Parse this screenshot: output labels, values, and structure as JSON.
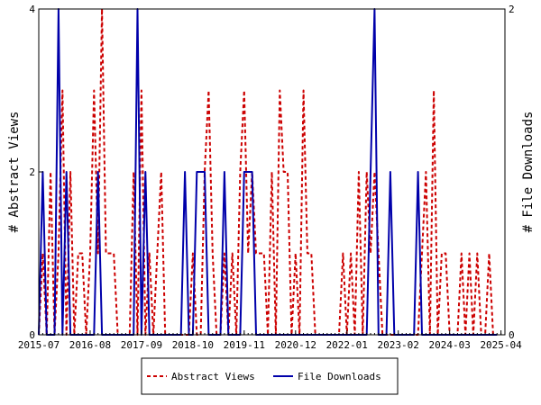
{
  "chart_data": {
    "type": "line",
    "x_start": "2015-07",
    "x_end": "2025-05",
    "x_tick_labels": [
      "2015-07",
      "2016-08",
      "2017-09",
      "2018-10",
      "2019-11",
      "2020-12",
      "2022-01",
      "2023-02",
      "2024-03",
      "2025-04"
    ],
    "ylabel_left": "# Abstract Views",
    "ylabel_right": "# File Downloads",
    "ylim_left": [
      0,
      4
    ],
    "ylim_right": [
      0,
      2
    ],
    "y_left_ticks": [
      "0",
      "2",
      "4"
    ],
    "y_right_ticks": [
      "0",
      "2"
    ],
    "grid": false,
    "legend_position": "bottom-center",
    "colors": {
      "abstract_views": "#cc0000",
      "file_downloads": "#0000aa"
    },
    "series": [
      {
        "name": "Abstract Views",
        "axis": "left",
        "style": "dashed",
        "points": [
          [
            "2015-07",
            0
          ],
          [
            "2015-08",
            1
          ],
          [
            "2015-09",
            0
          ],
          [
            "2015-10",
            2
          ],
          [
            "2015-11",
            0
          ],
          [
            "2015-12",
            1
          ],
          [
            "2016-01",
            3
          ],
          [
            "2016-02",
            0
          ],
          [
            "2016-03",
            2
          ],
          [
            "2016-04",
            0
          ],
          [
            "2016-05",
            1
          ],
          [
            "2016-06",
            1
          ],
          [
            "2016-07",
            0
          ],
          [
            "2016-08",
            1
          ],
          [
            "2016-09",
            3
          ],
          [
            "2016-10",
            1
          ],
          [
            "2016-11",
            4
          ],
          [
            "2016-12",
            1
          ],
          [
            "2017-01",
            1
          ],
          [
            "2017-02",
            1
          ],
          [
            "2017-03",
            0
          ],
          [
            "2017-04",
            0
          ],
          [
            "2017-05",
            0
          ],
          [
            "2017-06",
            0
          ],
          [
            "2017-07",
            2
          ],
          [
            "2017-08",
            0
          ],
          [
            "2017-09",
            3
          ],
          [
            "2017-10",
            0
          ],
          [
            "2017-11",
            1
          ],
          [
            "2017-12",
            0
          ],
          [
            "2018-01",
            1
          ],
          [
            "2018-02",
            2
          ],
          [
            "2018-03",
            0
          ],
          [
            "2018-04",
            0
          ],
          [
            "2018-05",
            0
          ],
          [
            "2018-06",
            0
          ],
          [
            "2018-07",
            0
          ],
          [
            "2018-08",
            0
          ],
          [
            "2018-09",
            0
          ],
          [
            "2018-10",
            1
          ],
          [
            "2018-11",
            0
          ],
          [
            "2018-12",
            0
          ],
          [
            "2019-01",
            2
          ],
          [
            "2019-02",
            3
          ],
          [
            "2019-03",
            1
          ],
          [
            "2019-04",
            0
          ],
          [
            "2019-05",
            0
          ],
          [
            "2019-06",
            1
          ],
          [
            "2019-07",
            0
          ],
          [
            "2019-08",
            1
          ],
          [
            "2019-09",
            0
          ],
          [
            "2019-10",
            2
          ],
          [
            "2019-11",
            3
          ],
          [
            "2019-12",
            1
          ],
          [
            "2020-01",
            2
          ],
          [
            "2020-02",
            1
          ],
          [
            "2020-03",
            1
          ],
          [
            "2020-04",
            1
          ],
          [
            "2020-05",
            0
          ],
          [
            "2020-06",
            2
          ],
          [
            "2020-07",
            0
          ],
          [
            "2020-08",
            3
          ],
          [
            "2020-09",
            2
          ],
          [
            "2020-10",
            2
          ],
          [
            "2020-11",
            0
          ],
          [
            "2020-12",
            1
          ],
          [
            "2021-01",
            0
          ],
          [
            "2021-02",
            3
          ],
          [
            "2021-03",
            1
          ],
          [
            "2021-04",
            1
          ],
          [
            "2021-05",
            0
          ],
          [
            "2021-06",
            0
          ],
          [
            "2021-07",
            0
          ],
          [
            "2021-08",
            0
          ],
          [
            "2021-09",
            0
          ],
          [
            "2021-10",
            0
          ],
          [
            "2021-11",
            0
          ],
          [
            "2021-12",
            1
          ],
          [
            "2022-01",
            0
          ],
          [
            "2022-02",
            1
          ],
          [
            "2022-03",
            0
          ],
          [
            "2022-04",
            2
          ],
          [
            "2022-05",
            0
          ],
          [
            "2022-06",
            2
          ],
          [
            "2022-07",
            1
          ],
          [
            "2022-08",
            2
          ],
          [
            "2022-09",
            1
          ],
          [
            "2022-10",
            0
          ],
          [
            "2022-11",
            0
          ],
          [
            "2022-12",
            0
          ],
          [
            "2023-01",
            0
          ],
          [
            "2023-02",
            0
          ],
          [
            "2023-03",
            0
          ],
          [
            "2023-04",
            0
          ],
          [
            "2023-05",
            0
          ],
          [
            "2023-06",
            0
          ],
          [
            "2023-07",
            0
          ],
          [
            "2023-08",
            1
          ],
          [
            "2023-09",
            2
          ],
          [
            "2023-10",
            0
          ],
          [
            "2023-11",
            3
          ],
          [
            "2023-12",
            0
          ],
          [
            "2024-01",
            1
          ],
          [
            "2024-02",
            1
          ],
          [
            "2024-03",
            0
          ],
          [
            "2024-04",
            0
          ],
          [
            "2024-05",
            0
          ],
          [
            "2024-06",
            1
          ],
          [
            "2024-07",
            0
          ],
          [
            "2024-08",
            1
          ],
          [
            "2024-09",
            0
          ],
          [
            "2024-10",
            1
          ],
          [
            "2024-11",
            0
          ],
          [
            "2024-12",
            0
          ],
          [
            "2025-01",
            1
          ],
          [
            "2025-02",
            0
          ],
          [
            "2025-03",
            0
          ]
        ]
      },
      {
        "name": "File Downloads",
        "axis": "right",
        "style": "solid",
        "points": [
          [
            "2015-07",
            0
          ],
          [
            "2015-08",
            1
          ],
          [
            "2015-09",
            0
          ],
          [
            "2015-10",
            0
          ],
          [
            "2015-11",
            0
          ],
          [
            "2015-12",
            2
          ],
          [
            "2016-01",
            0
          ],
          [
            "2016-02",
            1
          ],
          [
            "2016-03",
            0
          ],
          [
            "2016-04",
            0
          ],
          [
            "2016-05",
            0
          ],
          [
            "2016-06",
            0
          ],
          [
            "2016-07",
            0
          ],
          [
            "2016-08",
            0
          ],
          [
            "2016-09",
            0
          ],
          [
            "2016-10",
            1
          ],
          [
            "2016-11",
            0
          ],
          [
            "2016-12",
            0
          ],
          [
            "2017-01",
            0
          ],
          [
            "2017-02",
            0
          ],
          [
            "2017-03",
            0
          ],
          [
            "2017-04",
            0
          ],
          [
            "2017-05",
            0
          ],
          [
            "2017-06",
            0
          ],
          [
            "2017-07",
            0
          ],
          [
            "2017-08",
            2
          ],
          [
            "2017-09",
            0
          ],
          [
            "2017-10",
            1
          ],
          [
            "2017-11",
            0
          ],
          [
            "2017-12",
            0
          ],
          [
            "2018-01",
            0
          ],
          [
            "2018-02",
            0
          ],
          [
            "2018-03",
            0
          ],
          [
            "2018-04",
            0
          ],
          [
            "2018-05",
            0
          ],
          [
            "2018-06",
            0
          ],
          [
            "2018-07",
            0
          ],
          [
            "2018-08",
            1
          ],
          [
            "2018-09",
            0
          ],
          [
            "2018-10",
            0
          ],
          [
            "2018-11",
            1
          ],
          [
            "2018-12",
            1
          ],
          [
            "2019-01",
            1
          ],
          [
            "2019-02",
            0
          ],
          [
            "2019-03",
            0
          ],
          [
            "2019-04",
            0
          ],
          [
            "2019-05",
            0
          ],
          [
            "2019-06",
            1
          ],
          [
            "2019-07",
            0
          ],
          [
            "2019-08",
            0
          ],
          [
            "2019-09",
            0
          ],
          [
            "2019-10",
            0
          ],
          [
            "2019-11",
            1
          ],
          [
            "2019-12",
            1
          ],
          [
            "2020-01",
            1
          ],
          [
            "2020-02",
            0
          ],
          [
            "2020-03",
            0
          ],
          [
            "2020-04",
            0
          ],
          [
            "2020-05",
            0
          ],
          [
            "2020-06",
            0
          ],
          [
            "2020-07",
            0
          ],
          [
            "2020-08",
            0
          ],
          [
            "2020-09",
            0
          ],
          [
            "2020-10",
            0
          ],
          [
            "2020-11",
            0
          ],
          [
            "2020-12",
            0
          ],
          [
            "2021-01",
            0
          ],
          [
            "2021-02",
            0
          ],
          [
            "2021-03",
            0
          ],
          [
            "2021-04",
            0
          ],
          [
            "2021-05",
            0
          ],
          [
            "2021-06",
            0
          ],
          [
            "2021-07",
            0
          ],
          [
            "2021-08",
            0
          ],
          [
            "2021-09",
            0
          ],
          [
            "2021-10",
            0
          ],
          [
            "2021-11",
            0
          ],
          [
            "2021-12",
            0
          ],
          [
            "2022-01",
            0
          ],
          [
            "2022-02",
            0
          ],
          [
            "2022-03",
            0
          ],
          [
            "2022-04",
            0
          ],
          [
            "2022-05",
            0
          ],
          [
            "2022-06",
            0
          ],
          [
            "2022-07",
            1
          ],
          [
            "2022-08",
            2
          ],
          [
            "2022-09",
            0
          ],
          [
            "2022-10",
            0
          ],
          [
            "2022-11",
            0
          ],
          [
            "2022-12",
            1
          ],
          [
            "2023-01",
            0
          ],
          [
            "2023-02",
            0
          ],
          [
            "2023-03",
            0
          ],
          [
            "2023-04",
            0
          ],
          [
            "2023-05",
            0
          ],
          [
            "2023-06",
            0
          ],
          [
            "2023-07",
            1
          ],
          [
            "2023-08",
            0
          ],
          [
            "2023-09",
            0
          ],
          [
            "2023-10",
            0
          ],
          [
            "2023-11",
            0
          ],
          [
            "2023-12",
            0
          ],
          [
            "2024-01",
            0
          ],
          [
            "2024-02",
            0
          ],
          [
            "2024-03",
            0
          ],
          [
            "2024-04",
            0
          ],
          [
            "2024-05",
            0
          ],
          [
            "2024-06",
            0
          ],
          [
            "2024-07",
            0
          ],
          [
            "2024-08",
            0
          ],
          [
            "2024-09",
            0
          ],
          [
            "2024-10",
            0
          ],
          [
            "2024-11",
            0
          ],
          [
            "2024-12",
            0
          ],
          [
            "2025-01",
            0
          ],
          [
            "2025-02",
            0
          ],
          [
            "2025-03",
            0
          ]
        ]
      }
    ]
  }
}
